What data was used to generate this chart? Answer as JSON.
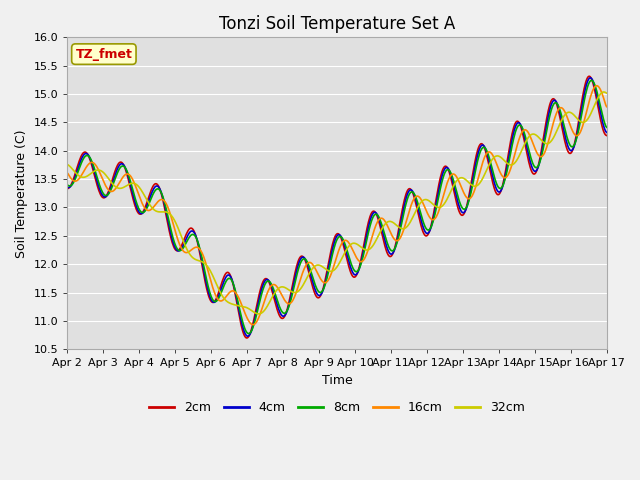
{
  "title": "Tonzi Soil Temperature Set A",
  "xlabel": "Time",
  "ylabel": "Soil Temperature (C)",
  "ylim": [
    10.5,
    16.0
  ],
  "yticks": [
    10.5,
    11.0,
    11.5,
    12.0,
    12.5,
    13.0,
    13.5,
    14.0,
    14.5,
    15.0,
    15.5,
    16.0
  ],
  "xtick_labels": [
    "Apr 2",
    "Apr 3",
    "Apr 4",
    "Apr 5",
    "Apr 6",
    "Apr 7",
    "Apr 8",
    "Apr 9",
    "Apr 10",
    "Apr 11",
    "Apr 12",
    "Apr 13",
    "Apr 14",
    "Apr 15",
    "Apr 16",
    "Apr 17"
  ],
  "series_colors": [
    "#cc0000",
    "#0000cc",
    "#00aa00",
    "#ff8800",
    "#cccc00"
  ],
  "series_labels": [
    "2cm",
    "4cm",
    "8cm",
    "16cm",
    "32cm"
  ],
  "series_linewidths": [
    1.2,
    1.2,
    1.2,
    1.2,
    1.2
  ],
  "annotation_text": "TZ_fmet",
  "annotation_color": "#cc0000",
  "annotation_bg": "#ffffcc",
  "annotation_border": "#999900",
  "fig_facecolor": "#f0f0f0",
  "ax_facecolor": "#e0e0e0",
  "grid_color": "#ffffff",
  "title_fontsize": 12,
  "tick_fontsize": 8,
  "label_fontsize": 9
}
